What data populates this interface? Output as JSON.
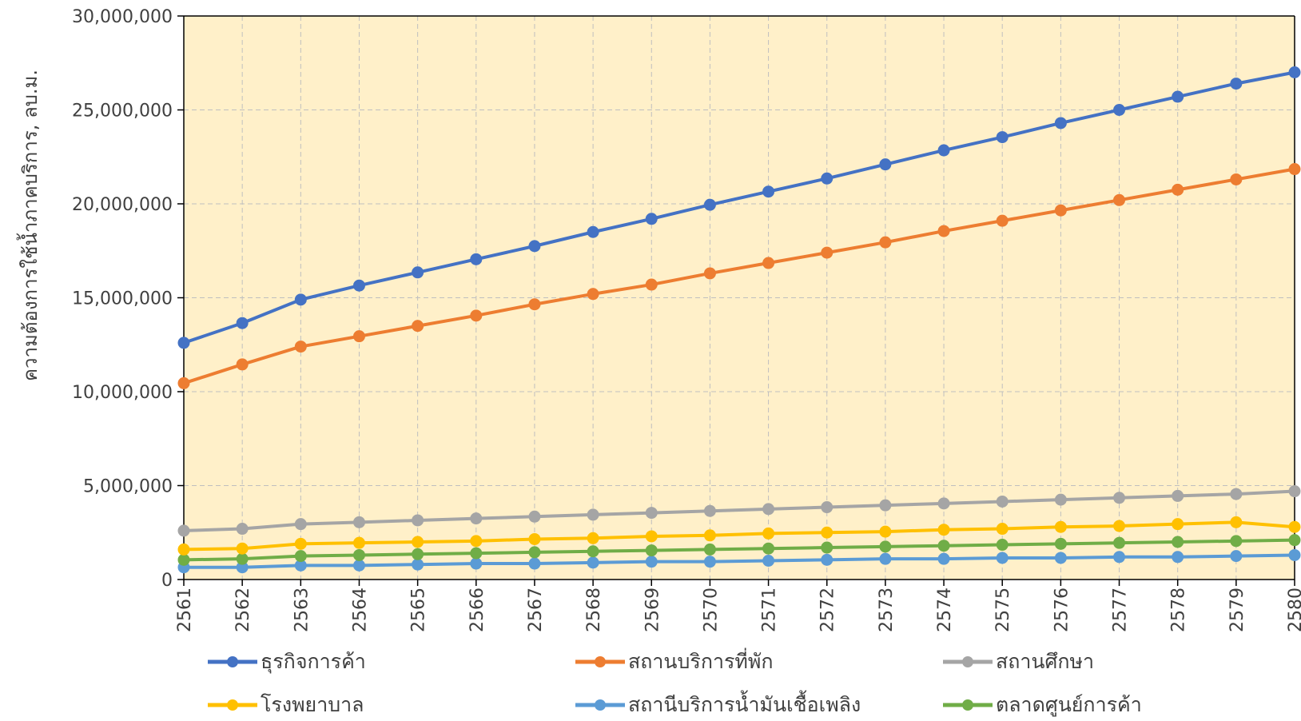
{
  "chart_data": {
    "type": "line",
    "title": "",
    "xlabel": "",
    "ylabel": "ความต้องการใช้น้ำภาคบริการ, ลบ.ม.",
    "ylim": [
      0,
      30000000
    ],
    "yticks": [
      0,
      5000000,
      10000000,
      15000000,
      20000000,
      25000000,
      30000000
    ],
    "ytick_labels": [
      "0",
      "5,000,000",
      "10,000,000",
      "15,000,000",
      "20,000,000",
      "25,000,000",
      "30,000,000"
    ],
    "categories": [
      "2561",
      "2562",
      "2563",
      "2564",
      "2565",
      "2566",
      "2567",
      "2568",
      "2569",
      "2570",
      "2571",
      "2572",
      "2573",
      "2574",
      "2575",
      "2576",
      "2577",
      "2578",
      "2579",
      "2580"
    ],
    "plot_background": "#FFF0C9",
    "grid": true,
    "legend_position": "bottom",
    "series": [
      {
        "name": "ธุรกิจการค้า",
        "color": "#4472C4",
        "values": [
          12600000,
          13650000,
          14900000,
          15650000,
          16350000,
          17050000,
          17750000,
          18500000,
          19200000,
          19950000,
          20650000,
          21350000,
          22100000,
          22850000,
          23550000,
          24300000,
          25000000,
          25700000,
          26400000,
          27000000
        ]
      },
      {
        "name": "สถานบริการที่พัก",
        "color": "#ED7D31",
        "values": [
          10450000,
          11450000,
          12400000,
          12950000,
          13500000,
          14050000,
          14650000,
          15200000,
          15700000,
          16300000,
          16850000,
          17400000,
          17950000,
          18550000,
          19100000,
          19650000,
          20200000,
          20750000,
          21300000,
          21850000
        ]
      },
      {
        "name": "สถานศึกษา",
        "color": "#A5A5A5",
        "values": [
          2600000,
          2700000,
          2950000,
          3050000,
          3150000,
          3250000,
          3350000,
          3450000,
          3550000,
          3650000,
          3750000,
          3850000,
          3950000,
          4050000,
          4150000,
          4250000,
          4350000,
          4450000,
          4550000,
          4700000
        ]
      },
      {
        "name": "โรงพยาบาล",
        "color": "#FFC000",
        "values": [
          1600000,
          1650000,
          1900000,
          1950000,
          2000000,
          2050000,
          2150000,
          2200000,
          2300000,
          2350000,
          2450000,
          2500000,
          2550000,
          2650000,
          2700000,
          2800000,
          2850000,
          2950000,
          3050000,
          2800000
        ]
      },
      {
        "name": "สถานีบริการน้ำมันเชื้อเพลิง",
        "color": "#5B9BD5",
        "values": [
          650000,
          650000,
          750000,
          750000,
          800000,
          850000,
          850000,
          900000,
          950000,
          950000,
          1000000,
          1050000,
          1100000,
          1100000,
          1150000,
          1150000,
          1200000,
          1200000,
          1250000,
          1300000
        ]
      },
      {
        "name": "ตลาดศูนย์การค้า",
        "color": "#70AD47",
        "values": [
          1050000,
          1100000,
          1250000,
          1300000,
          1350000,
          1400000,
          1450000,
          1500000,
          1550000,
          1600000,
          1650000,
          1700000,
          1750000,
          1800000,
          1850000,
          1900000,
          1950000,
          2000000,
          2050000,
          2100000
        ]
      }
    ]
  }
}
